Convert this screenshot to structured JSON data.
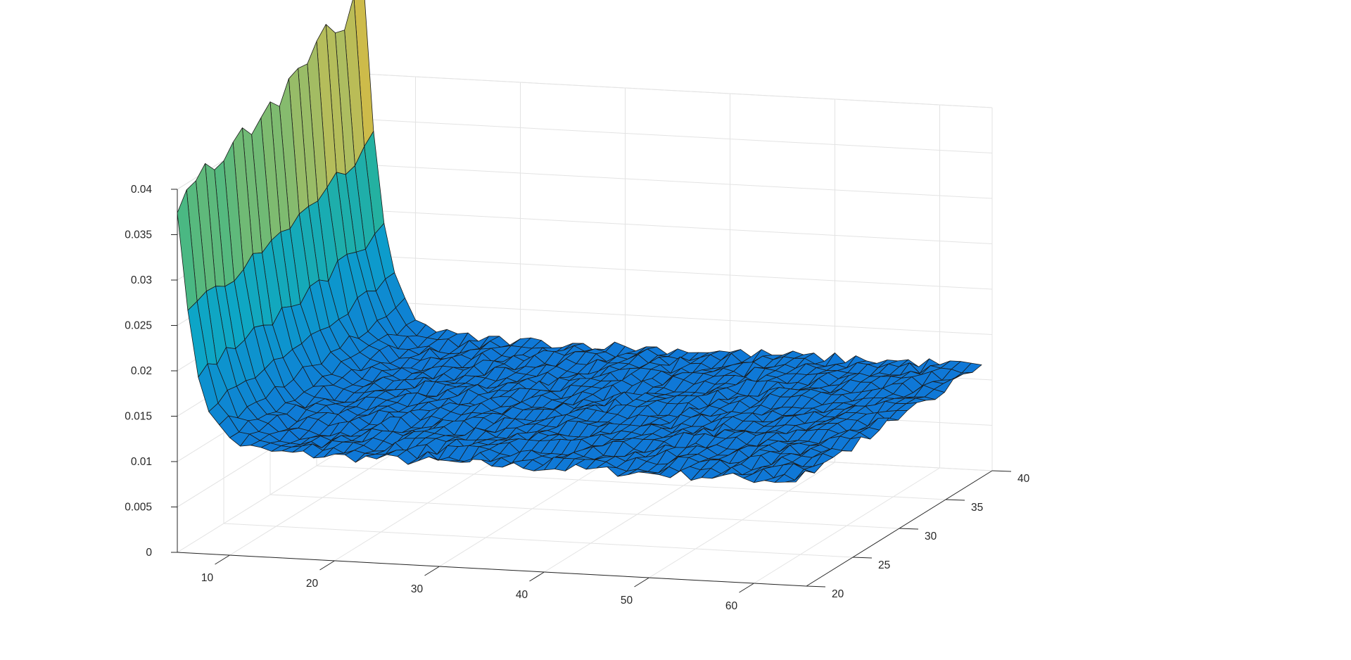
{
  "chart_data": {
    "type": "surface",
    "title": "",
    "xlabel": "",
    "ylabel": "",
    "zlabel": "",
    "xlim": [
      5,
      65
    ],
    "ylim": [
      20,
      40
    ],
    "zlim": [
      0,
      0.04
    ],
    "x_range": [
      5,
      64
    ],
    "y_range": [
      20,
      40
    ],
    "x_ticks": [
      10,
      20,
      30,
      40,
      50,
      60
    ],
    "y_ticks": [
      20,
      25,
      30,
      35,
      40
    ],
    "z_ticks": [
      0,
      0.005,
      0.01,
      0.015,
      0.02,
      0.025,
      0.03,
      0.035,
      0.04
    ],
    "x_tick_labels": [
      "10",
      "20",
      "30",
      "40",
      "50",
      "60"
    ],
    "y_tick_labels": [
      "20",
      "25",
      "30",
      "35",
      "40"
    ],
    "z_tick_labels": [
      "0",
      "0.005",
      "0.01",
      "0.015",
      "0.02",
      "0.025",
      "0.03",
      "0.035",
      "0.04"
    ],
    "baseline_value": 0.0115,
    "peak_at_x5": [
      0.038,
      0.0395,
      0.0395,
      0.041,
      0.04,
      0.0395,
      0.041,
      0.0425,
      0.0405,
      0.042,
      0.0435,
      0.042,
      0.0445,
      0.0455,
      0.0445,
      0.0465,
      0.0475,
      0.047,
      0.0465,
      0.0495,
      0.0505
    ],
    "decay_scale_x": 1.7,
    "noise_amplitude": 0.0006,
    "grid": true,
    "colormap": "parula",
    "colors": {
      "surface_low": "#0f78d7",
      "surface_high": "#f9fb0e",
      "edge": "#1a1a1a",
      "grid": "#e3e3e3",
      "axis": "#262626"
    }
  }
}
